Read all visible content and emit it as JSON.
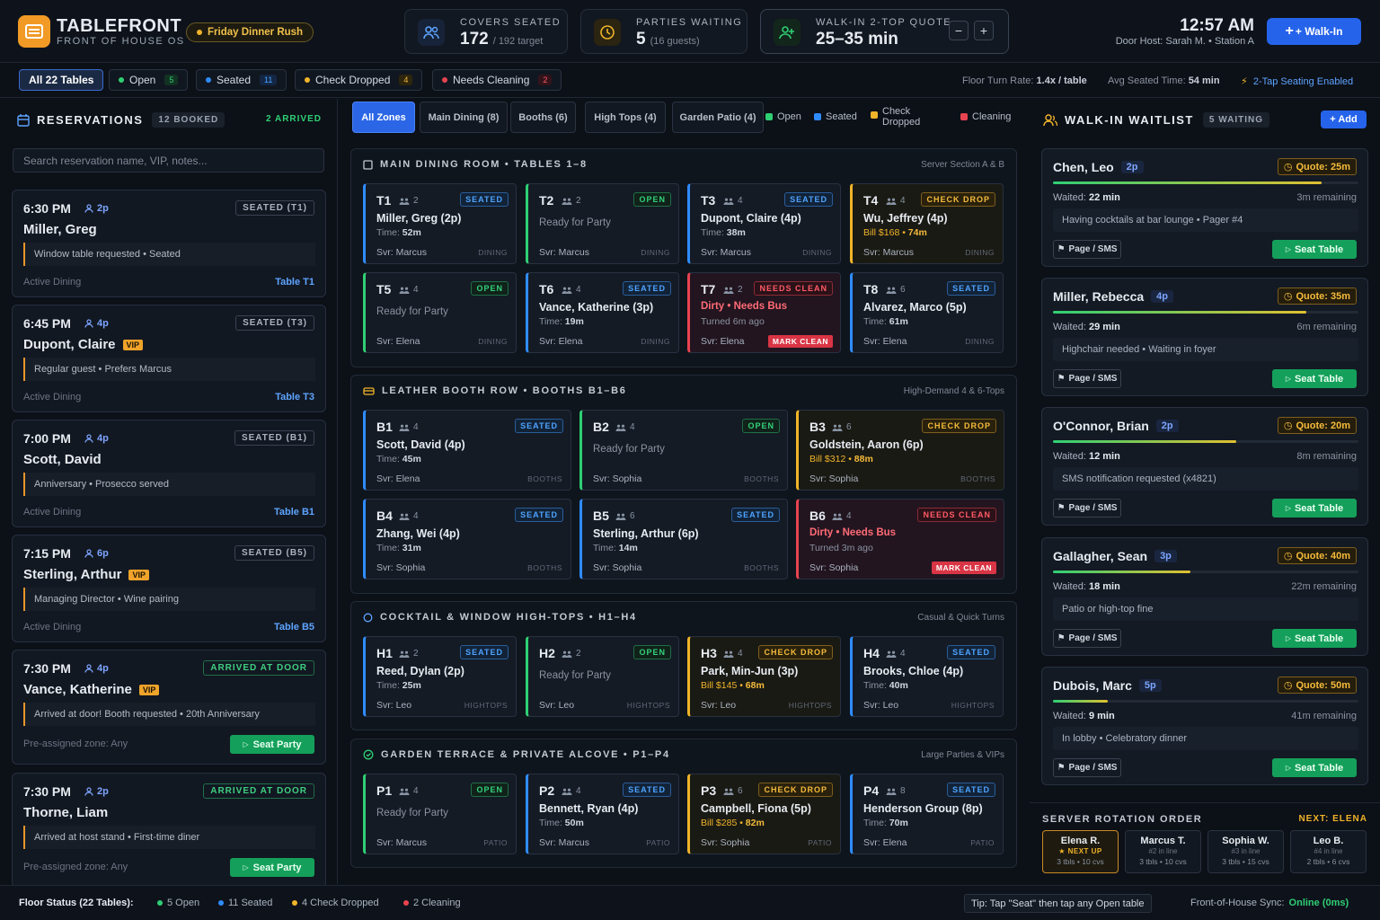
{
  "header": {
    "brand": "TABLEFRONT",
    "subtitle": "FRONT OF HOUSE OS",
    "rush": "Friday Dinner Rush",
    "covers_label": "COVERS SEATED",
    "covers_value": "172",
    "covers_sub": "/ 192 target",
    "parties_label": "PARTIES WAITING",
    "parties_value": "5",
    "parties_sub": "(16 guests)",
    "quote_label": "WALK-IN 2-TOP QUOTE",
    "quote_value": "25–35 min",
    "minus": "−",
    "plus": "+",
    "time": "12:57 AM",
    "host": "Door Host: Sarah M. • Station A",
    "walkin": "+ Walk-In"
  },
  "filters": {
    "all": "All 22 Tables",
    "open": "Open",
    "open_count": "5",
    "seated": "Seated",
    "seated_count": "11",
    "check": "Check Dropped",
    "check_count": "4",
    "clean": "Needs Cleaning",
    "clean_count": "2",
    "turn_label": "Floor Turn Rate:",
    "turn_value": "1.4x / table",
    "avg_label": "Avg Seated Time:",
    "avg_value": "54 min",
    "tap": "2-Tap Seating Enabled"
  },
  "reservations": {
    "title": "RESERVATIONS",
    "booked": "12 BOOKED",
    "arrived": "2 ARRIVED",
    "search_placeholder": "Search reservation name, VIP, notes...",
    "items": [
      {
        "time": "6:30 PM",
        "party": "2p",
        "status": "SEATED (T1)",
        "name": "Miller, Greg",
        "vip": "",
        "note": "Window table requested • Seated",
        "zone": "Active Dining",
        "link": "Table T1"
      },
      {
        "time": "6:45 PM",
        "party": "4p",
        "status": "SEATED (T3)",
        "name": "Dupont, Claire",
        "vip": "VIP",
        "note": "Regular guest • Prefers Marcus",
        "zone": "Active Dining",
        "link": "Table T3"
      },
      {
        "time": "7:00 PM",
        "party": "4p",
        "status": "SEATED (B1)",
        "name": "Scott, David",
        "vip": "",
        "note": "Anniversary • Prosecco served",
        "zone": "Active Dining",
        "link": "Table B1"
      },
      {
        "time": "7:15 PM",
        "party": "6p",
        "status": "SEATED (B5)",
        "name": "Sterling, Arthur",
        "vip": "VIP",
        "note": "Managing Director • Wine pairing",
        "zone": "Active Dining",
        "link": "Table B5"
      },
      {
        "time": "7:30 PM",
        "party": "4p",
        "status": "ARRIVED AT DOOR",
        "name": "Vance, Katherine",
        "vip": "VIP",
        "note": "Arrived at door! Booth requested • 20th Anniversary",
        "zone": "Pre-assigned zone: Any",
        "link": "Seat Party"
      },
      {
        "time": "7:30 PM",
        "party": "2p",
        "status": "ARRIVED AT DOOR",
        "name": "Thorne, Liam",
        "vip": "",
        "note": "Arrived at host stand • First-time diner",
        "zone": "Pre-assigned zone: Any",
        "link": "Seat Party"
      }
    ]
  },
  "zones": {
    "tabs": [
      "All Zones",
      "Main Dining (8)",
      "Booths (6)",
      "High Tops (4)",
      "Garden Patio (4)"
    ],
    "legend_open": "Open",
    "legend_seated": "Seated",
    "legend_check": "Check Dropped",
    "legend_clean": "Cleaning"
  },
  "sections": [
    {
      "title": "MAIN DINING ROOM • TABLES 1–8",
      "right": "Server Section A & B",
      "tables": [
        {
          "id": "T1",
          "cap": "2",
          "badge": "SEATED",
          "guest": "Miller, Greg (2p)",
          "line": "Time:",
          "val": "52m",
          "server": "Svr: Marcus",
          "zone": "DINING"
        },
        {
          "id": "T2",
          "cap": "2",
          "badge": "OPEN",
          "guest": "Ready for Party",
          "line": "",
          "val": "",
          "server": "Svr: Marcus",
          "zone": "DINING"
        },
        {
          "id": "T3",
          "cap": "4",
          "badge": "SEATED",
          "guest": "Dupont, Claire (4p)",
          "line": "Time:",
          "val": "38m",
          "server": "Svr: Marcus",
          "zone": "DINING"
        },
        {
          "id": "T4",
          "cap": "4",
          "badge": "CHECK DROP",
          "guest": "Wu, Jeffrey (4p)",
          "line": "Bill $168",
          "val": "74m",
          "server": "Svr: Marcus",
          "zone": "DINING"
        },
        {
          "id": "T5",
          "cap": "4",
          "badge": "OPEN",
          "guest": "Ready for Party",
          "line": "",
          "val": "",
          "server": "Svr: Elena",
          "zone": "DINING"
        },
        {
          "id": "T6",
          "cap": "4",
          "badge": "SEATED",
          "guest": "Vance, Katherine (3p)",
          "line": "Time:",
          "val": "19m",
          "server": "Svr: Elena",
          "zone": "DINING"
        },
        {
          "id": "T7",
          "cap": "2",
          "badge": "NEEDS CLEAN",
          "guest": "Dirty • Needs Bus",
          "line": "Turned 6m ago",
          "val": "",
          "server": "Svr: Elena",
          "zone": "MARK CLEAN"
        },
        {
          "id": "T8",
          "cap": "6",
          "badge": "SEATED",
          "guest": "Alvarez, Marco (5p)",
          "line": "Time:",
          "val": "61m",
          "server": "Svr: Elena",
          "zone": "DINING"
        }
      ]
    },
    {
      "title": "LEATHER BOOTH ROW • BOOTHS B1–B6",
      "right": "High-Demand 4 & 6-Tops",
      "tables": [
        {
          "id": "B1",
          "cap": "4",
          "badge": "SEATED",
          "guest": "Scott, David (4p)",
          "line": "Time:",
          "val": "45m",
          "server": "Svr: Elena",
          "zone": "BOOTHS"
        },
        {
          "id": "B2",
          "cap": "4",
          "badge": "OPEN",
          "guest": "Ready for Party",
          "line": "",
          "val": "",
          "server": "Svr: Sophia",
          "zone": "BOOTHS"
        },
        {
          "id": "B3",
          "cap": "6",
          "badge": "CHECK DROP",
          "guest": "Goldstein, Aaron (6p)",
          "line": "Bill $312",
          "val": "88m",
          "server": "Svr: Sophia",
          "zone": "BOOTHS"
        },
        {
          "id": "B4",
          "cap": "4",
          "badge": "SEATED",
          "guest": "Zhang, Wei (4p)",
          "line": "Time:",
          "val": "31m",
          "server": "Svr: Sophia",
          "zone": "BOOTHS"
        },
        {
          "id": "B5",
          "cap": "6",
          "badge": "SEATED",
          "guest": "Sterling, Arthur (6p)",
          "line": "Time:",
          "val": "14m",
          "server": "Svr: Sophia",
          "zone": "BOOTHS"
        },
        {
          "id": "B6",
          "cap": "4",
          "badge": "NEEDS CLEAN",
          "guest": "Dirty • Needs Bus",
          "line": "Turned 3m ago",
          "val": "",
          "server": "Svr: Sophia",
          "zone": "MARK CLEAN"
        }
      ]
    },
    {
      "title": "COCKTAIL & WINDOW HIGH-TOPS • H1–H4",
      "right": "Casual & Quick Turns",
      "tables": [
        {
          "id": "H1",
          "cap": "2",
          "badge": "SEATED",
          "guest": "Reed, Dylan (2p)",
          "line": "Time:",
          "val": "25m",
          "server": "Svr: Leo",
          "zone": "HIGHTOPS"
        },
        {
          "id": "H2",
          "cap": "2",
          "badge": "OPEN",
          "guest": "Ready for Party",
          "line": "",
          "val": "",
          "server": "Svr: Leo",
          "zone": "HIGHTOPS"
        },
        {
          "id": "H3",
          "cap": "4",
          "badge": "CHECK DROP",
          "guest": "Park, Min-Jun (3p)",
          "line": "Bill $145",
          "val": "68m",
          "server": "Svr: Leo",
          "zone": "HIGHTOPS"
        },
        {
          "id": "H4",
          "cap": "4",
          "badge": "SEATED",
          "guest": "Brooks, Chloe (4p)",
          "line": "Time:",
          "val": "40m",
          "server": "Svr: Leo",
          "zone": "HIGHTOPS"
        }
      ]
    },
    {
      "title": "GARDEN TERRACE & PRIVATE ALCOVE • P1–P4",
      "right": "Large Parties & VIPs",
      "tables": [
        {
          "id": "P1",
          "cap": "4",
          "badge": "OPEN",
          "guest": "Ready for Party",
          "line": "",
          "val": "",
          "server": "Svr: Marcus",
          "zone": "PATIO"
        },
        {
          "id": "P2",
          "cap": "4",
          "badge": "SEATED",
          "guest": "Bennett, Ryan (4p)",
          "line": "Time:",
          "val": "50m",
          "server": "Svr: Marcus",
          "zone": "PATIO"
        },
        {
          "id": "P3",
          "cap": "6",
          "badge": "CHECK DROP",
          "guest": "Campbell, Fiona (5p)",
          "line": "Bill $285",
          "val": "82m",
          "server": "Svr: Sophia",
          "zone": "PATIO"
        },
        {
          "id": "P4",
          "cap": "8",
          "badge": "SEATED",
          "guest": "Henderson Group (8p)",
          "line": "Time:",
          "val": "70m",
          "server": "Svr: Elena",
          "zone": "PATIO"
        }
      ]
    }
  ],
  "waitlist": {
    "title": "WALK-IN WAITLIST",
    "count": "5 WAITING",
    "add": "+ Add",
    "page_label": "Page / SMS",
    "seat_label": "Seat Table",
    "items": [
      {
        "name": "Chen, Leo",
        "party": "2p",
        "quote": "Quote: 25m",
        "progress": 0.88,
        "waited": "22 min",
        "remaining": "3m remaining",
        "note": "Having cocktails at bar lounge • Pager #4"
      },
      {
        "name": "Miller, Rebecca",
        "party": "4p",
        "quote": "Quote: 35m",
        "progress": 0.83,
        "waited": "29 min",
        "remaining": "6m remaining",
        "note": "Highchair needed • Waiting in foyer"
      },
      {
        "name": "O'Connor, Brian",
        "party": "2p",
        "quote": "Quote: 20m",
        "progress": 0.6,
        "waited": "12 min",
        "remaining": "8m remaining",
        "note": "SMS notification requested (x4821)"
      },
      {
        "name": "Gallagher, Sean",
        "party": "3p",
        "quote": "Quote: 40m",
        "progress": 0.45,
        "waited": "18 min",
        "remaining": "22m remaining",
        "note": "Patio or high-top fine"
      },
      {
        "name": "Dubois, Marc",
        "party": "5p",
        "quote": "Quote: 50m",
        "progress": 0.18,
        "waited": "9 min",
        "remaining": "41m remaining",
        "note": "In lobby • Celebratory dinner"
      }
    ]
  },
  "rotation": {
    "title": "SERVER ROTATION ORDER",
    "next": "NEXT: ELENA",
    "servers": [
      {
        "name": "Elena R.",
        "pos": "★ NEXT UP",
        "stats": "3 tbls • 10 cvs"
      },
      {
        "name": "Marcus T.",
        "pos": "#2 in line",
        "stats": "3 tbls • 10 cvs"
      },
      {
        "name": "Sophia W.",
        "pos": "#3 in line",
        "stats": "3 tbls • 15 cvs"
      },
      {
        "name": "Leo B.",
        "pos": "#4 in line",
        "stats": "2 tbls • 6 cvs"
      }
    ]
  },
  "footer": {
    "label": "Floor Status (22 Tables):",
    "open": "5 Open",
    "seated": "11 Seated",
    "check": "4 Check Dropped",
    "clean": "2 Cleaning",
    "tip": "Tip: Tap \"Seat\" then tap any Open table",
    "sync_label": "Front-of-House Sync:",
    "sync_value": "Online (0ms)"
  },
  "colors": {
    "open": "#2fcf74",
    "seated": "#2f8cff",
    "check": "#f0b429",
    "clean": "#e84350",
    "accent": "#2563eb"
  }
}
